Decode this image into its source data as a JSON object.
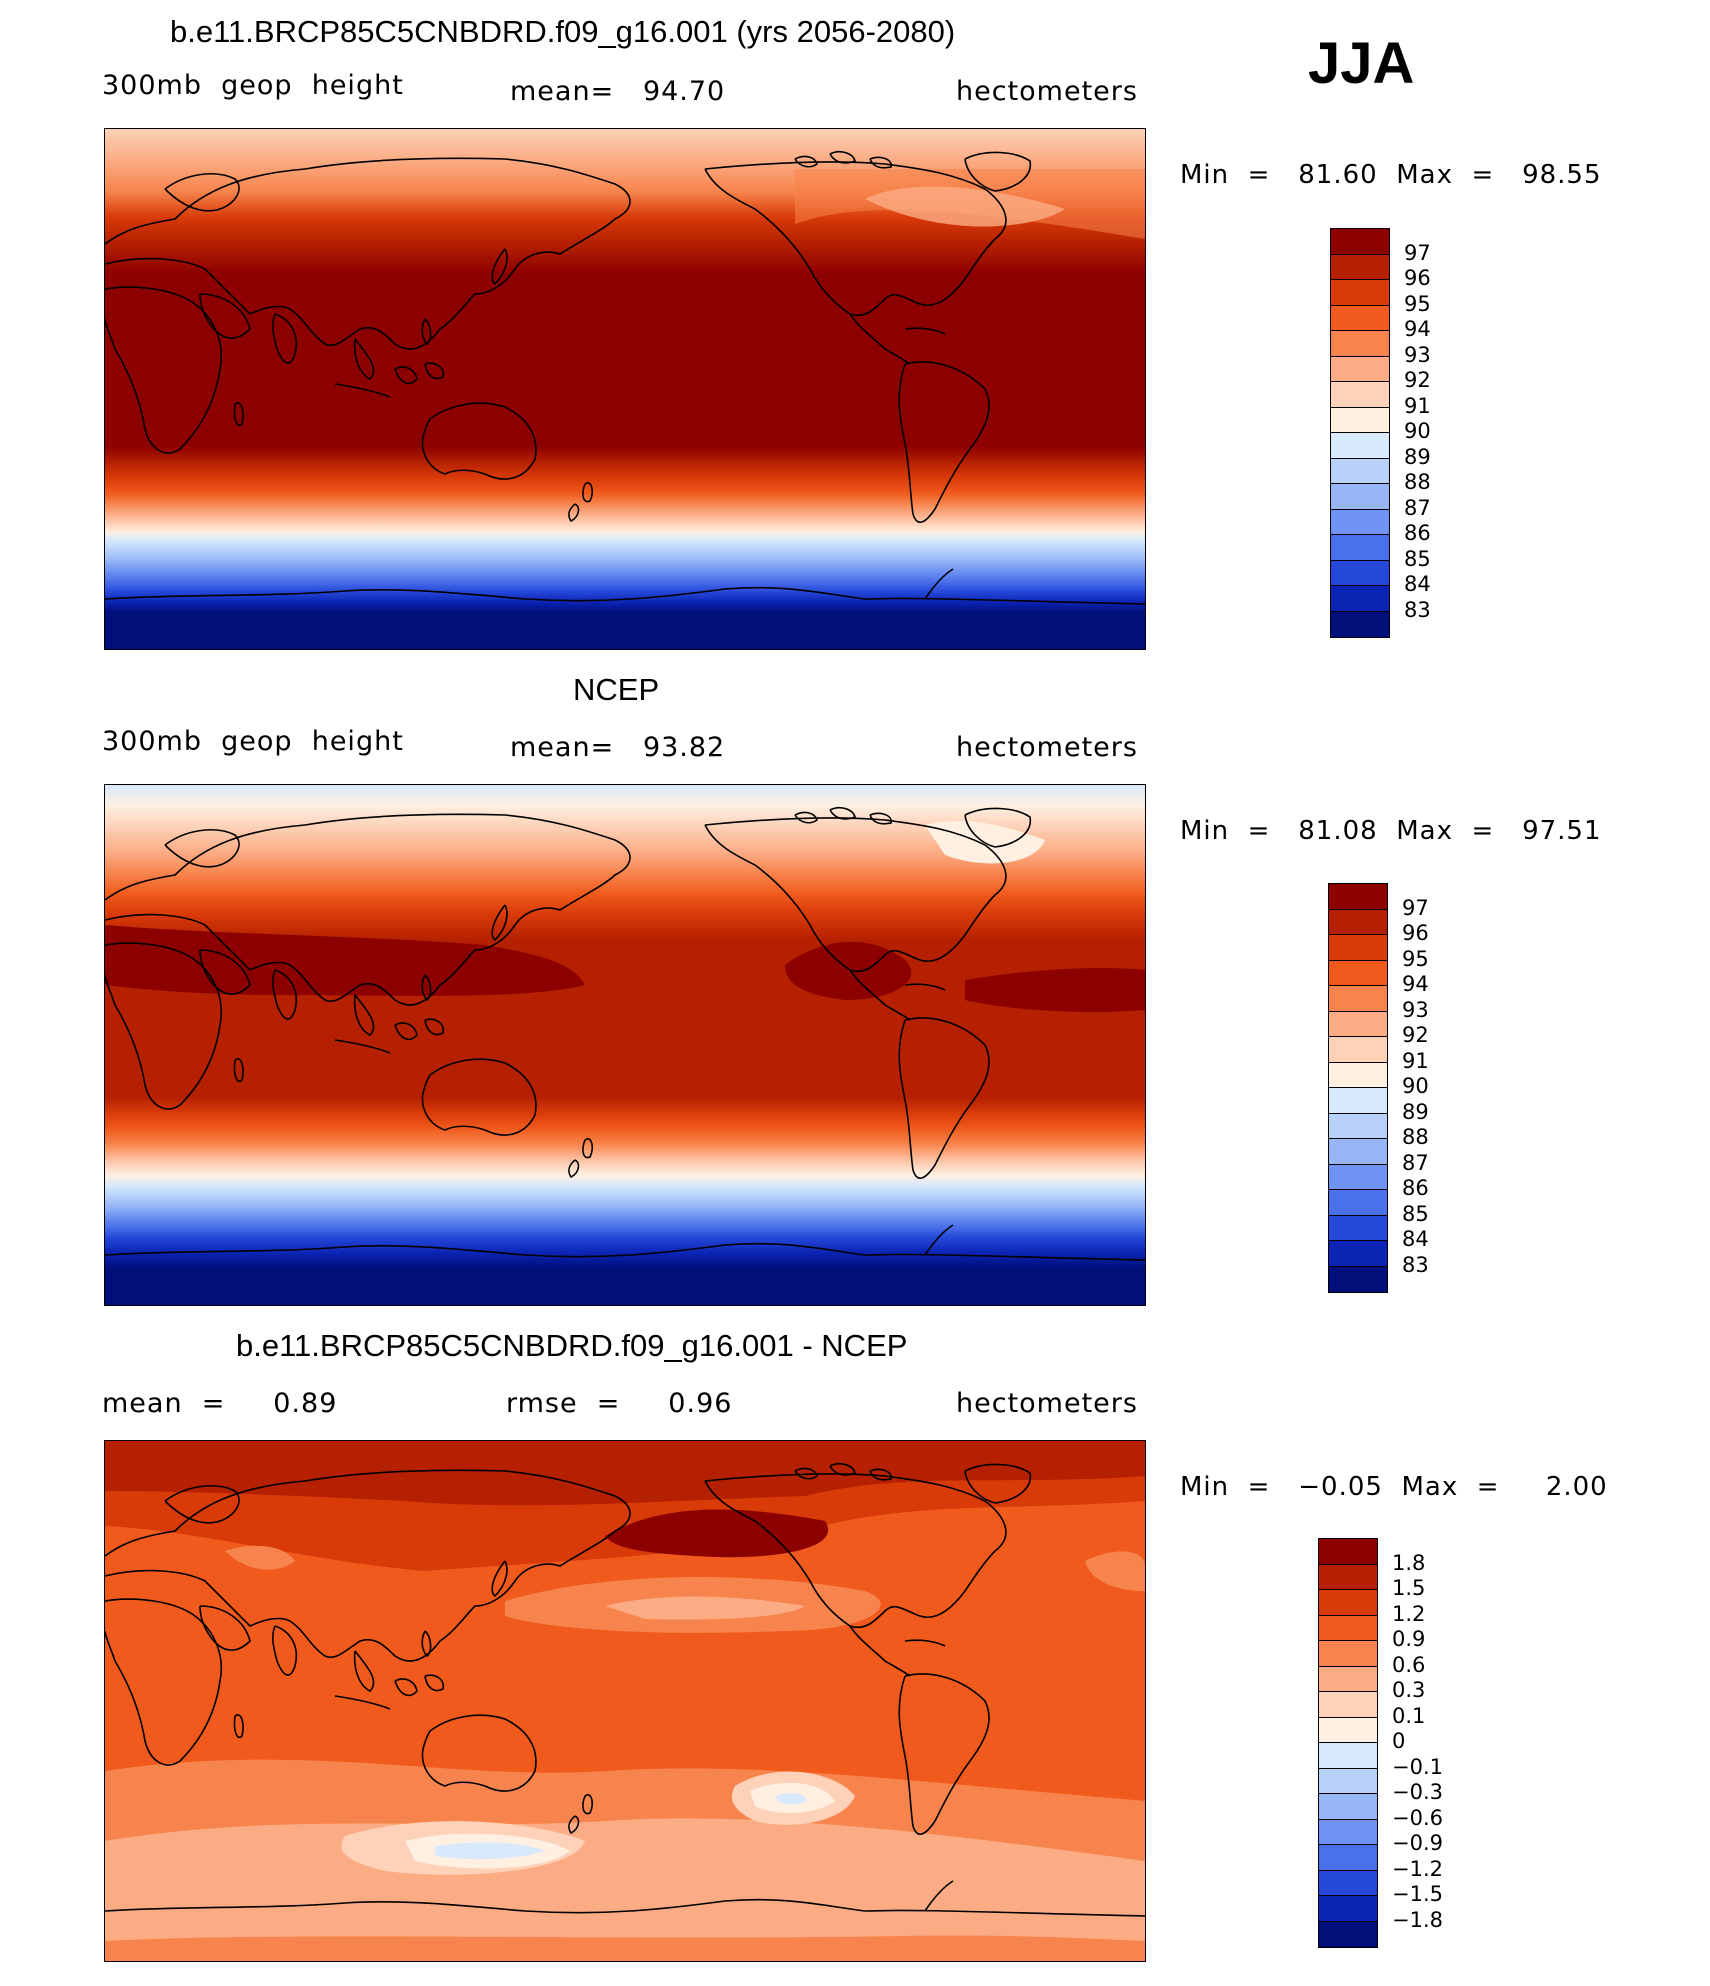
{
  "season": "JJA",
  "panels": [
    {
      "title": "b.e11.BRCP85C5CNBDRD.f09_g16.001 (yrs 2056-2080)",
      "left_label": "300mb  geop  height",
      "center_label": "mean=   94.70",
      "right_label": "hectometers",
      "minmax": "Min  =   81.60  Max  =   98.55",
      "legend_labels": [
        "97",
        "96",
        "95",
        "94",
        "93",
        "92",
        "91",
        "90",
        "89",
        "88",
        "87",
        "86",
        "85",
        "84",
        "83"
      ],
      "legend_colors": [
        "#8c0000",
        "#b42000",
        "#d83a08",
        "#f05a1c",
        "#f7844c",
        "#fbac84",
        "#fdd2b8",
        "#fff0e2",
        "#d7e9fb",
        "#b7d1f9",
        "#96b6f6",
        "#6e93f2",
        "#4a70ea",
        "#2548d8",
        "#0b24b4",
        "#000f7a"
      ]
    },
    {
      "title": "NCEP",
      "left_label": "300mb  geop  height",
      "center_label": "mean=   93.82",
      "right_label": "hectometers",
      "minmax": "Min  =   81.08  Max  =   97.51",
      "legend_labels": [
        "97",
        "96",
        "95",
        "94",
        "93",
        "92",
        "91",
        "90",
        "89",
        "88",
        "87",
        "86",
        "85",
        "84",
        "83"
      ],
      "legend_colors": [
        "#8c0000",
        "#b42000",
        "#d83a08",
        "#f05a1c",
        "#f7844c",
        "#fbac84",
        "#fdd2b8",
        "#fff0e2",
        "#d7e9fb",
        "#b7d1f9",
        "#96b6f6",
        "#6e93f2",
        "#4a70ea",
        "#2548d8",
        "#0b24b4",
        "#000f7a"
      ]
    },
    {
      "title": "b.e11.BRCP85C5CNBDRD.f09_g16.001 - NCEP",
      "left_label": "mean  =     0.89",
      "center_label": "rmse  =     0.96",
      "right_label": "hectometers",
      "minmax": "Min  =   −0.05  Max  =     2.00",
      "legend_labels": [
        "1.8",
        "1.5",
        "1.2",
        "0.9",
        "0.6",
        "0.3",
        "0.1",
        "0",
        "−0.1",
        "−0.3",
        "−0.6",
        "−0.9",
        "−1.2",
        "−1.5",
        "−1.8"
      ],
      "legend_colors": [
        "#8c0000",
        "#b42000",
        "#d83a08",
        "#f05a1c",
        "#f7844c",
        "#fbac84",
        "#fdd2b8",
        "#fff0e2",
        "#d7e9fb",
        "#b7d1f9",
        "#96b6f6",
        "#6e93f2",
        "#4a70ea",
        "#2548d8",
        "#0b24b4",
        "#000f7a"
      ]
    }
  ]
}
